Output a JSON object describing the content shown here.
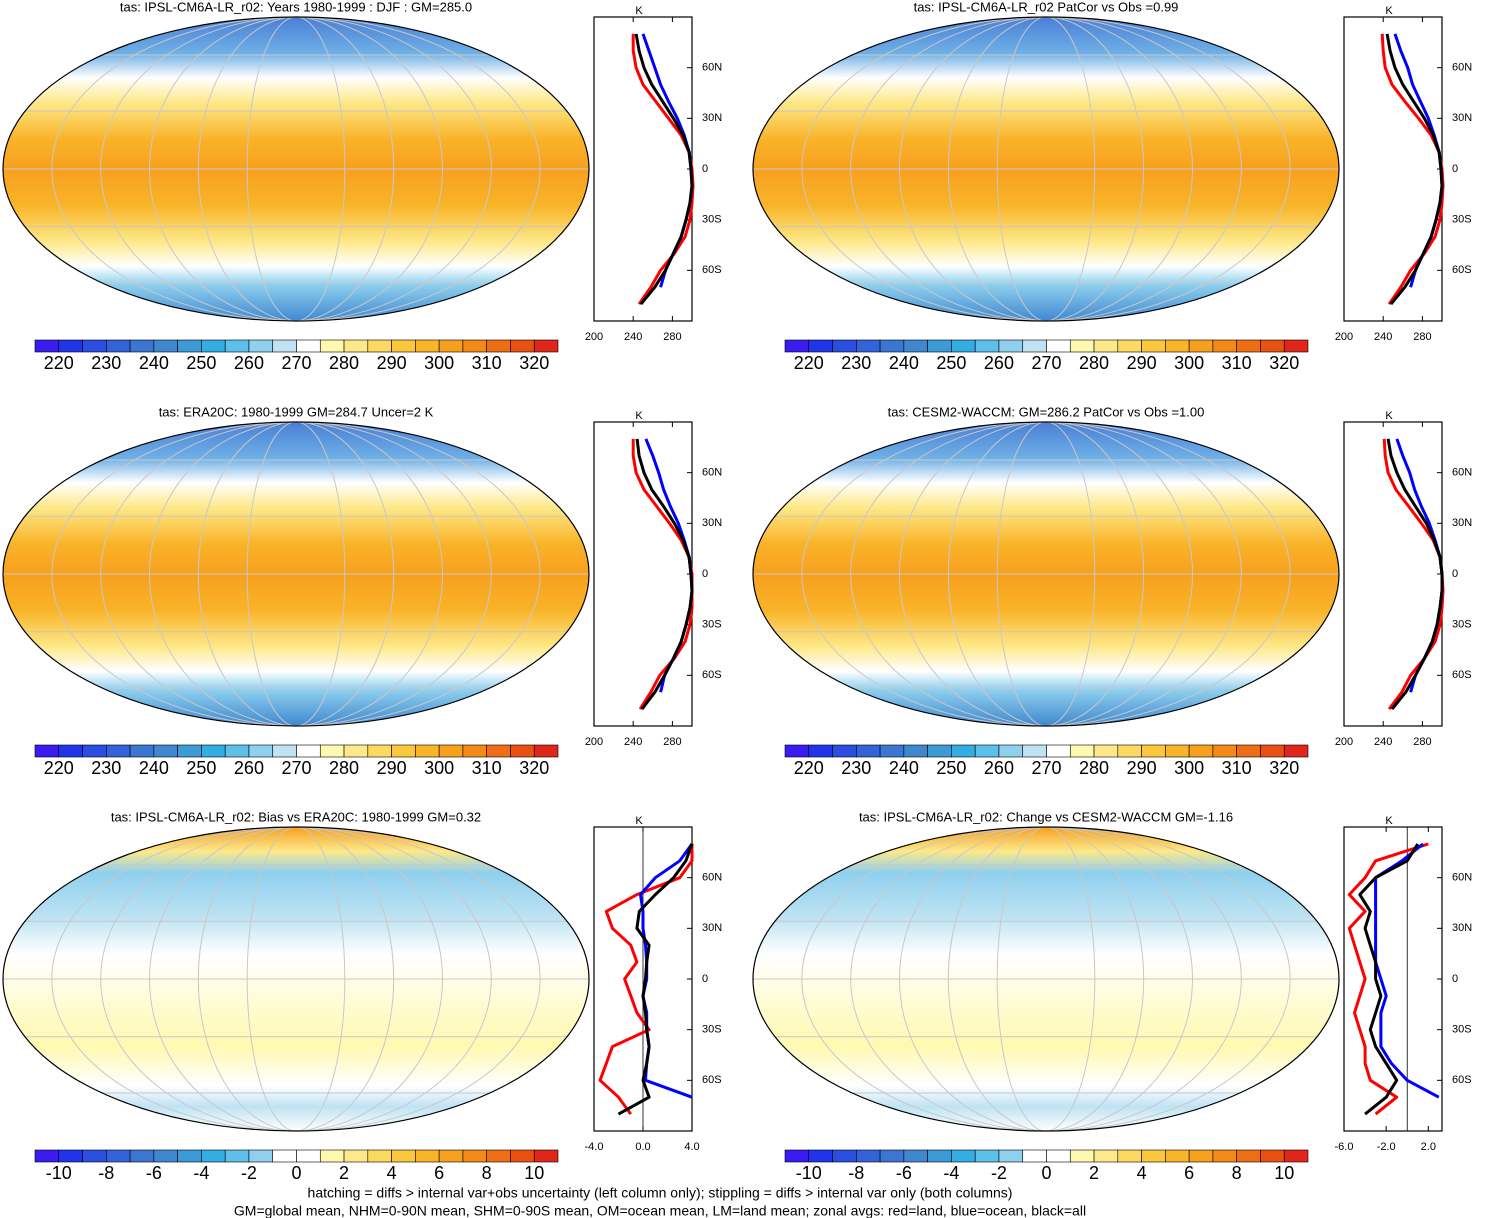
{
  "chart_data": [
    {
      "type": "line",
      "title": "tas: IPSL-CM6A-LR_r02: Years 1980-1999 : DJF : GM=285.0",
      "x_label": "K",
      "xlim": [
        200,
        300
      ],
      "xticks": [
        200,
        240,
        280
      ],
      "ylim": [
        -90,
        90
      ],
      "yticks": [
        {
          "value": 60,
          "label": "60N"
        },
        {
          "value": 30,
          "label": "30N"
        },
        0,
        {
          "value": -30,
          "label": "30S"
        },
        {
          "value": -60,
          "label": "60S"
        }
      ],
      "y": [
        -80,
        -70,
        -60,
        -50,
        -40,
        -30,
        -20,
        -10,
        0,
        10,
        20,
        30,
        40,
        50,
        60,
        70,
        80
      ],
      "series": [
        {
          "color": "#ff0000",
          "values": [
            246,
            258,
            268,
            282,
            293,
            298,
            300,
            301,
            300,
            297,
            289,
            276,
            263,
            250,
            243,
            240,
            240
          ]
        },
        {
          "color": "#0000ff",
          "values": [
            null,
            268,
            273,
            281,
            289,
            294,
            298,
            300,
            299,
            297,
            292,
            285,
            276,
            268,
            262,
            256,
            250
          ]
        },
        {
          "color": "#000000",
          "values": [
            248,
            262,
            273,
            281,
            289,
            294,
            298,
            300,
            299,
            297,
            291,
            281,
            270,
            259,
            251,
            246,
            243
          ]
        }
      ],
      "colorbar": {
        "lim": [
          215,
          325
        ],
        "ticks": [
          220,
          230,
          240,
          250,
          260,
          270,
          280,
          290,
          300,
          310,
          320
        ],
        "colors": [
          "#3a1cf0",
          "#2035e8",
          "#2a4ee0",
          "#3363d8",
          "#3a76d2",
          "#3f88d0",
          "#3c9ad6",
          "#34aee2",
          "#5cc0ea",
          "#8fd0ee",
          "#bfe3f3",
          "#ffffff",
          "#fff9b0",
          "#fde98a",
          "#fcd960",
          "#fbc73c",
          "#f9b429",
          "#f7a01e",
          "#f38a18",
          "#ee6e16",
          "#e85014",
          "#e0261a"
        ]
      }
    },
    {
      "type": "line",
      "title": "tas: IPSL-CM6A-LR_r02 PatCor vs Obs =0.99",
      "x_label": "K",
      "xlim": [
        200,
        300
      ],
      "xticks": [
        200,
        240,
        280
      ],
      "ylim": [
        -90,
        90
      ],
      "yticks": [
        {
          "value": 60,
          "label": "60N"
        },
        {
          "value": 30,
          "label": "30N"
        },
        0,
        {
          "value": -30,
          "label": "30S"
        },
        {
          "value": -60,
          "label": "60S"
        }
      ],
      "y": [
        -80,
        -70,
        -60,
        -50,
        -40,
        -30,
        -20,
        -10,
        0,
        10,
        20,
        30,
        40,
        50,
        60,
        70,
        80
      ],
      "series": [
        {
          "color": "#ff0000",
          "values": [
            246,
            258,
            268,
            282,
            293,
            298,
            300,
            301,
            300,
            297,
            289,
            276,
            262,
            249,
            242,
            240,
            239
          ]
        },
        {
          "color": "#0000ff",
          "values": [
            null,
            268,
            273,
            281,
            289,
            294,
            298,
            300,
            299,
            297,
            292,
            286,
            278,
            270,
            265,
            258,
            252
          ]
        },
        {
          "color": "#000000",
          "values": [
            248,
            262,
            273,
            281,
            289,
            294,
            298,
            300,
            299,
            297,
            291,
            282,
            271,
            260,
            252,
            247,
            244
          ]
        }
      ],
      "colorbar": {
        "lim": [
          215,
          325
        ],
        "ticks": [
          220,
          230,
          240,
          250,
          260,
          270,
          280,
          290,
          300,
          310,
          320
        ],
        "colors": [
          "#3a1cf0",
          "#2035e8",
          "#2a4ee0",
          "#3363d8",
          "#3a76d2",
          "#3f88d0",
          "#3c9ad6",
          "#34aee2",
          "#5cc0ea",
          "#8fd0ee",
          "#bfe3f3",
          "#ffffff",
          "#fff9b0",
          "#fde98a",
          "#fcd960",
          "#fbc73c",
          "#f9b429",
          "#f7a01e",
          "#f38a18",
          "#ee6e16",
          "#e85014",
          "#e0261a"
        ]
      }
    },
    {
      "type": "line",
      "title": "tas: ERA20C: 1980-1999 GM=284.7 Uncer=2 K",
      "x_label": "K",
      "xlim": [
        200,
        300
      ],
      "xticks": [
        200,
        240,
        280
      ],
      "ylim": [
        -90,
        90
      ],
      "yticks": [
        {
          "value": 60,
          "label": "60N"
        },
        {
          "value": 30,
          "label": "30N"
        },
        0,
        {
          "value": -30,
          "label": "30S"
        },
        {
          "value": -60,
          "label": "60S"
        }
      ],
      "y": [
        -80,
        -70,
        -60,
        -50,
        -40,
        -30,
        -20,
        -10,
        0,
        10,
        20,
        30,
        40,
        50,
        60,
        70,
        80
      ],
      "series": [
        {
          "color": "#ff0000",
          "values": [
            247,
            258,
            267,
            282,
            293,
            298,
            300,
            300,
            300,
            297,
            289,
            277,
            264,
            251,
            243,
            240,
            240
          ]
        },
        {
          "color": "#0000ff",
          "values": [
            null,
            268,
            272,
            281,
            289,
            294,
            298,
            300,
            299,
            297,
            292,
            286,
            278,
            271,
            266,
            260,
            253
          ]
        },
        {
          "color": "#000000",
          "values": [
            249,
            262,
            272,
            281,
            289,
            294,
            298,
            300,
            299,
            297,
            291,
            282,
            271,
            259,
            251,
            246,
            244
          ]
        }
      ],
      "colorbar": {
        "lim": [
          215,
          325
        ],
        "ticks": [
          220,
          230,
          240,
          250,
          260,
          270,
          280,
          290,
          300,
          310,
          320
        ],
        "colors": [
          "#3a1cf0",
          "#2035e8",
          "#2a4ee0",
          "#3363d8",
          "#3a76d2",
          "#3f88d0",
          "#3c9ad6",
          "#34aee2",
          "#5cc0ea",
          "#8fd0ee",
          "#bfe3f3",
          "#ffffff",
          "#fff9b0",
          "#fde98a",
          "#fcd960",
          "#fbc73c",
          "#f9b429",
          "#f7a01e",
          "#f38a18",
          "#ee6e16",
          "#e85014",
          "#e0261a"
        ]
      }
    },
    {
      "type": "line",
      "title": "tas: CESM2-WACCM: GM=286.2 PatCor vs Obs =1.00",
      "x_label": "K",
      "xlim": [
        200,
        300
      ],
      "xticks": [
        200,
        240,
        280
      ],
      "ylim": [
        -90,
        90
      ],
      "yticks": [
        {
          "value": 60,
          "label": "60N"
        },
        {
          "value": 30,
          "label": "30N"
        },
        0,
        {
          "value": -30,
          "label": "30S"
        },
        {
          "value": -60,
          "label": "60S"
        }
      ],
      "y": [
        -80,
        -70,
        -60,
        -50,
        -40,
        -30,
        -20,
        -10,
        0,
        10,
        20,
        30,
        40,
        50,
        60,
        70,
        80
      ],
      "series": [
        {
          "color": "#ff0000",
          "values": [
            246,
            259,
            268,
            282,
            293,
            298,
            300,
            301,
            300,
            298,
            291,
            279,
            266,
            253,
            245,
            242,
            241
          ]
        },
        {
          "color": "#0000ff",
          "values": [
            null,
            268,
            273,
            282,
            290,
            295,
            298,
            300,
            300,
            298,
            293,
            287,
            279,
            272,
            267,
            260,
            254
          ]
        },
        {
          "color": "#000000",
          "values": [
            249,
            263,
            273,
            282,
            290,
            295,
            298,
            300,
            300,
            298,
            292,
            284,
            273,
            262,
            254,
            248,
            245
          ]
        }
      ],
      "colorbar": {
        "lim": [
          215,
          325
        ],
        "ticks": [
          220,
          230,
          240,
          250,
          260,
          270,
          280,
          290,
          300,
          310,
          320
        ],
        "colors": [
          "#3a1cf0",
          "#2035e8",
          "#2a4ee0",
          "#3363d8",
          "#3a76d2",
          "#3f88d0",
          "#3c9ad6",
          "#34aee2",
          "#5cc0ea",
          "#8fd0ee",
          "#bfe3f3",
          "#ffffff",
          "#fff9b0",
          "#fde98a",
          "#fcd960",
          "#fbc73c",
          "#f9b429",
          "#f7a01e",
          "#f38a18",
          "#ee6e16",
          "#e85014",
          "#e0261a"
        ]
      }
    },
    {
      "type": "line",
      "title": "tas: IPSL-CM6A-LR_r02: Bias vs ERA20C: 1980-1999 GM=0.32",
      "x_label": "K",
      "xlim": [
        -4,
        4
      ],
      "xticks": [
        {
          "value": -4,
          "label": "-4.0"
        },
        {
          "value": 0,
          "label": "0.0"
        },
        {
          "value": 4,
          "label": "4.0"
        }
      ],
      "ylim": [
        -90,
        90
      ],
      "yticks": [
        {
          "value": 60,
          "label": "60N"
        },
        {
          "value": 30,
          "label": "30N"
        },
        0,
        {
          "value": -30,
          "label": "30S"
        },
        {
          "value": -60,
          "label": "60S"
        }
      ],
      "y": [
        -80,
        -70,
        -60,
        -50,
        -40,
        -30,
        -20,
        -10,
        0,
        10,
        20,
        30,
        40,
        50,
        60,
        70,
        80
      ],
      "series": [
        {
          "color": "#ff0000",
          "values": [
            -1,
            -2,
            -3.5,
            -3,
            -2.5,
            0.5,
            -0.5,
            -1,
            -1.5,
            -0.5,
            -1,
            -2.5,
            -3,
            -0.5,
            3,
            4,
            4
          ]
        },
        {
          "color": "#0000ff",
          "values": [
            null,
            4,
            0.2,
            0.3,
            0.5,
            0.3,
            0.3,
            0,
            0.3,
            0.3,
            0.2,
            0,
            0,
            -0.2,
            1,
            3,
            4
          ]
        },
        {
          "color": "#000000",
          "values": [
            -2,
            0.5,
            0,
            0.3,
            0.5,
            0.3,
            0.2,
            0,
            0.2,
            0.3,
            0.5,
            -0.5,
            -0.3,
            1,
            2.5,
            3.5,
            4
          ]
        }
      ],
      "colorbar": {
        "lim": [
          -11,
          11
        ],
        "ticks": [
          -10,
          -8,
          -6,
          -4,
          -2,
          0,
          2,
          4,
          6,
          8,
          10
        ],
        "colors": [
          "#3a1cf0",
          "#2035e8",
          "#2a4ee0",
          "#3363d8",
          "#3a76d2",
          "#3f88d0",
          "#3c9ad6",
          "#34aee2",
          "#5cc0ea",
          "#8fd0ee",
          "#ffffff",
          "#ffffff",
          "#fff9b0",
          "#fde98a",
          "#fcd960",
          "#fbc73c",
          "#f9b429",
          "#f7a01e",
          "#f38a18",
          "#ee6e16",
          "#e85014",
          "#e0261a"
        ]
      }
    },
    {
      "type": "line",
      "title": "tas: IPSL-CM6A-LR_r02: Change vs CESM2-WACCM GM=-1.16",
      "x_label": "K",
      "xlim": [
        -6,
        3.3
      ],
      "xticks": [
        {
          "value": -6,
          "label": "-6.0"
        },
        {
          "value": -2,
          "label": "-2.0"
        },
        {
          "value": 2,
          "label": "2.0"
        }
      ],
      "ylim": [
        -90,
        90
      ],
      "yticks": [
        {
          "value": 60,
          "label": "60N"
        },
        {
          "value": 30,
          "label": "30N"
        },
        0,
        {
          "value": -30,
          "label": "30S"
        },
        {
          "value": -60,
          "label": "60S"
        }
      ],
      "y": [
        -80,
        -70,
        -60,
        -50,
        -40,
        -30,
        -20,
        -10,
        0,
        10,
        20,
        30,
        40,
        50,
        60,
        70,
        80
      ],
      "series": [
        {
          "color": "#ff0000",
          "values": [
            -3,
            -1,
            -3.5,
            -4,
            -4,
            -4.5,
            -5,
            -4.5,
            -4,
            -4.5,
            -5,
            -5.5,
            -4,
            -5.5,
            -4,
            -3,
            2
          ]
        },
        {
          "color": "#0000ff",
          "values": [
            null,
            3,
            0,
            -1.5,
            -2.5,
            -2.5,
            -2.5,
            -2,
            -2.5,
            -3,
            -3,
            -3,
            -3,
            -3,
            -3,
            -0.5,
            1.5
          ]
        },
        {
          "color": "#000000",
          "values": [
            -4,
            -2,
            -1,
            -2,
            -3,
            -3.5,
            -3,
            -2.5,
            -3,
            -3,
            -3.5,
            -4,
            -3.5,
            -4.5,
            -3,
            0,
            1
          ]
        }
      ],
      "colorbar": {
        "lim": [
          -11,
          11
        ],
        "ticks": [
          -10,
          -8,
          -6,
          -4,
          -2,
          0,
          2,
          4,
          6,
          8,
          10
        ],
        "colors": [
          "#3a1cf0",
          "#2035e8",
          "#2a4ee0",
          "#3363d8",
          "#3a76d2",
          "#3f88d0",
          "#3c9ad6",
          "#34aee2",
          "#5cc0ea",
          "#8fd0ee",
          "#ffffff",
          "#ffffff",
          "#fff9b0",
          "#fde98a",
          "#fcd960",
          "#fbc73c",
          "#f9b429",
          "#f7a01e",
          "#f38a18",
          "#ee6e16",
          "#e85014",
          "#e0261a"
        ]
      }
    }
  ],
  "footer": [
    "hatching = diffs > internal var+obs uncertainty (left column only); stippling = diffs > internal var only (both columns)",
    "GM=global mean, NHM=0-90N mean, SHM=0-90S mean, OM=ocean mean, LM=land mean; zonal avgs: red=land, blue=ocean, black=all"
  ]
}
